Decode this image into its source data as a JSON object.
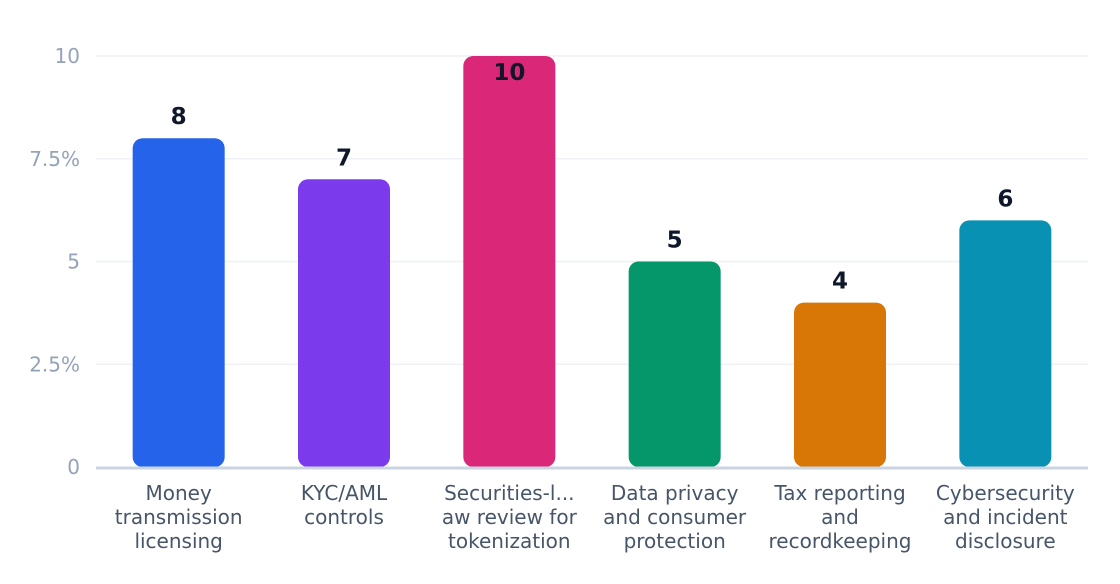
{
  "chart_data": {
    "type": "bar",
    "categories": [
      [
        "Money",
        "transmission",
        "licensing"
      ],
      [
        "KYC/AML",
        "controls"
      ],
      [
        "Securities-l...",
        "aw review for",
        "tokenization"
      ],
      [
        "Data privacy",
        "and consumer",
        "protection"
      ],
      [
        "Tax reporting",
        "and",
        "recordkeeping"
      ],
      [
        "Cybersecurity",
        "and incident",
        "disclosure"
      ]
    ],
    "values": [
      8,
      7,
      10,
      5,
      4,
      6
    ],
    "data_labels": [
      "8",
      "7",
      "10",
      "5",
      "4",
      "6"
    ],
    "colors": [
      "#2563eb",
      "#7c3aed",
      "#db2777",
      "#059669",
      "#d97706",
      "#0891b2"
    ],
    "ylim": [
      0,
      10
    ],
    "yticks": [
      {
        "value": 0,
        "label": "0"
      },
      {
        "value": 2.5,
        "label": "2.5%"
      },
      {
        "value": 5,
        "label": "5"
      },
      {
        "value": 7.5,
        "label": "7.5%"
      },
      {
        "value": 10,
        "label": "10"
      }
    ],
    "grid": true,
    "legend": "none"
  }
}
